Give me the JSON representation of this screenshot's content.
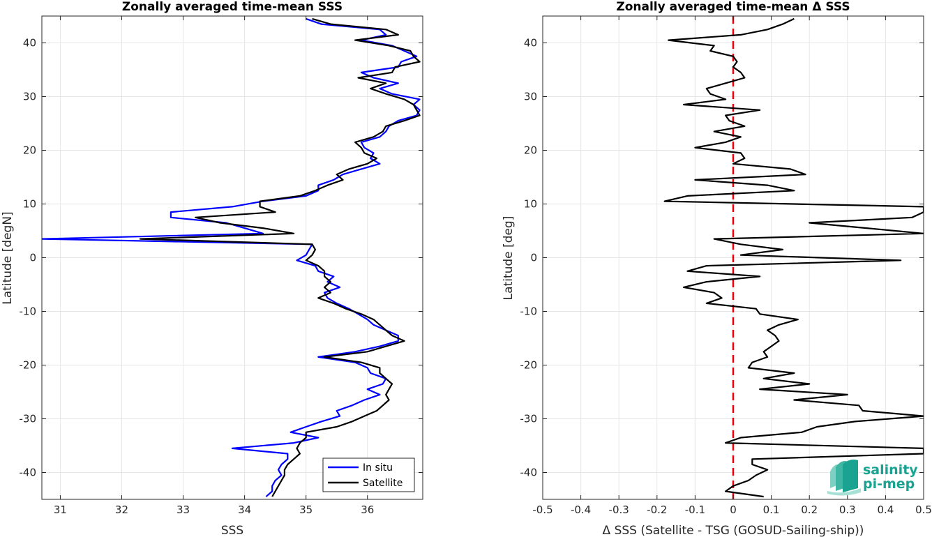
{
  "chart_data": [
    {
      "type": "line",
      "title": "Zonally averaged time-mean SSS",
      "xlabel": "SSS",
      "ylabel": "Latitude [degN]",
      "xlim": [
        30.7,
        36.9
      ],
      "ylim": [
        -45,
        45
      ],
      "xticks": [
        31,
        32,
        33,
        34,
        35,
        36
      ],
      "yticks": [
        -40,
        -30,
        -20,
        -10,
        0,
        10,
        20,
        30,
        40
      ],
      "grid": true,
      "legend": "bottom-right",
      "series": [
        {
          "name": "In situ",
          "color": "#0000ff",
          "lat": [
            44.5,
            43.5,
            42.5,
            41.5,
            40.5,
            39.5,
            38.5,
            37.5,
            36.5,
            35.5,
            34.5,
            33.5,
            32.5,
            31.5,
            30.5,
            29.5,
            28.5,
            27.5,
            26.5,
            25.5,
            24.5,
            23.5,
            22.5,
            21.5,
            20.5,
            19.5,
            18.5,
            17.5,
            16.5,
            15.5,
            14.5,
            13.5,
            12.5,
            11.5,
            10.5,
            9.5,
            8.5,
            7.5,
            6.5,
            5.5,
            4.5,
            3.5,
            2.5,
            1.5,
            0.5,
            -0.5,
            -1.5,
            -2.5,
            -3.5,
            -4.5,
            -5.5,
            -6.5,
            -7.5,
            -8.5,
            -9.5,
            -10.5,
            -11.5,
            -12.5,
            -13.5,
            -14.5,
            -15.5,
            -16.5,
            -17.5,
            -18.5,
            -19.5,
            -20.5,
            -21.5,
            -22.5,
            -23.5,
            -24.5,
            -25.5,
            -26.5,
            -27.5,
            -28.5,
            -29.5,
            -30.5,
            -31.5,
            -32.5,
            -33.5,
            -34.5,
            -35.5,
            -36.5,
            -37.5,
            -38.5,
            -39.5,
            -40.5,
            -41.5,
            -42.5,
            -43.5,
            -44.5
          ],
          "values": [
            35.0,
            35.25,
            36.2,
            36.3,
            35.9,
            36.4,
            36.6,
            36.8,
            36.55,
            36.5,
            35.9,
            36.1,
            36.5,
            36.2,
            36.4,
            36.85,
            36.75,
            36.85,
            36.8,
            36.5,
            36.35,
            36.3,
            36.2,
            35.9,
            35.95,
            36.1,
            36.05,
            36.2,
            35.9,
            35.6,
            35.45,
            35.2,
            35.2,
            35.0,
            34.3,
            33.8,
            32.8,
            32.8,
            33.7,
            34.0,
            34.3,
            30.7,
            35.1,
            35.05,
            35.0,
            34.85,
            35.15,
            35.2,
            35.45,
            35.35,
            35.55,
            35.3,
            35.35,
            35.5,
            35.7,
            35.85,
            36.0,
            36.1,
            36.3,
            36.5,
            36.5,
            36.2,
            35.8,
            35.2,
            35.8,
            36.0,
            36.05,
            36.3,
            36.25,
            36.0,
            36.2,
            35.95,
            35.75,
            35.5,
            35.55,
            35.25,
            35.0,
            34.75,
            35.2,
            34.8,
            33.8,
            34.7,
            34.7,
            34.6,
            34.55,
            34.6,
            34.5,
            34.45,
            34.45,
            34.35
          ]
        },
        {
          "name": "Satellite",
          "color": "#000000",
          "lat": [
            44.5,
            43.5,
            42.5,
            41.5,
            40.5,
            39.5,
            38.5,
            37.5,
            36.5,
            35.5,
            34.5,
            33.5,
            32.5,
            31.5,
            30.5,
            29.5,
            28.5,
            27.5,
            26.5,
            25.5,
            24.5,
            23.5,
            22.5,
            21.5,
            20.5,
            19.5,
            18.5,
            17.5,
            16.5,
            15.5,
            14.5,
            13.5,
            12.5,
            11.5,
            10.5,
            9.5,
            8.5,
            7.5,
            6.5,
            5.5,
            4.5,
            3.5,
            2.5,
            1.5,
            0.5,
            -0.5,
            -1.5,
            -2.5,
            -3.5,
            -4.5,
            -5.5,
            -6.5,
            -7.5,
            -8.5,
            -9.5,
            -10.5,
            -11.5,
            -12.5,
            -13.5,
            -14.5,
            -15.5,
            -16.5,
            -17.5,
            -18.5,
            -19.5,
            -20.5,
            -21.5,
            -22.5,
            -23.5,
            -24.5,
            -25.5,
            -26.5,
            -27.5,
            -28.5,
            -29.5,
            -30.5,
            -31.5,
            -32.5,
            -33.5,
            -34.5,
            -35.5,
            -36.5,
            -37.5,
            -38.5,
            -39.5,
            -40.5,
            -41.5,
            -42.5,
            -43.5,
            -44.5
          ],
          "values": [
            35.1,
            35.4,
            36.3,
            36.5,
            35.8,
            36.35,
            36.7,
            36.75,
            36.85,
            36.45,
            36.4,
            35.85,
            36.3,
            36.05,
            36.3,
            36.6,
            36.75,
            36.8,
            36.85,
            36.6,
            36.3,
            36.25,
            36.1,
            35.8,
            35.9,
            35.95,
            36.15,
            36.0,
            35.7,
            35.5,
            35.6,
            35.35,
            35.15,
            34.9,
            34.25,
            34.25,
            34.5,
            33.2,
            33.6,
            34.3,
            34.8,
            32.3,
            35.1,
            35.15,
            35.1,
            35.0,
            35.2,
            35.3,
            35.3,
            35.4,
            35.3,
            35.4,
            35.2,
            35.45,
            35.65,
            35.9,
            36.1,
            36.2,
            36.3,
            36.4,
            36.6,
            36.3,
            36.0,
            35.3,
            35.9,
            36.2,
            36.2,
            36.3,
            36.4,
            36.35,
            36.3,
            36.35,
            36.25,
            36.15,
            35.95,
            35.75,
            35.5,
            35.0,
            35.0,
            34.9,
            34.85,
            34.9,
            34.8,
            34.7,
            34.65,
            34.65,
            34.6,
            34.55,
            34.5,
            34.45
          ]
        }
      ]
    },
    {
      "type": "line",
      "title": "Zonally averaged time-mean Δ SSS",
      "xlabel": "Δ SSS (Satellite - TSG (GOSUD-Sailing-ship))",
      "ylabel": "Latitude [deg]",
      "xlim": [
        -0.5,
        0.5
      ],
      "ylim": [
        -45,
        45
      ],
      "xticks": [
        -0.5,
        -0.4,
        -0.3,
        -0.2,
        -0.1,
        0,
        0.1,
        0.2,
        0.3,
        0.4,
        0.5
      ],
      "xtick_labels": [
        "-0.5",
        "-0.4",
        "-0.3",
        "-0.2",
        "-0.1",
        "0",
        "0.1",
        "0.2",
        "0.3",
        "0.4",
        "0.5"
      ],
      "yticks": [
        -40,
        -30,
        -20,
        -10,
        0,
        10,
        20,
        30,
        40
      ],
      "grid": true,
      "zero_line_color": "#e8000b",
      "series": [
        {
          "color": "#000000",
          "lat": [
            44.5,
            43.5,
            42.5,
            41.5,
            40.5,
            39.5,
            38.5,
            37.5,
            36.5,
            35.5,
            34.5,
            33.5,
            32.5,
            31.5,
            30.5,
            29.5,
            28.5,
            27.5,
            26.5,
            25.5,
            24.5,
            23.5,
            22.5,
            21.5,
            20.5,
            19.5,
            18.5,
            17.5,
            16.5,
            15.5,
            14.5,
            13.5,
            12.5,
            11.5,
            10.5,
            9.5,
            8.5,
            7.5,
            6.5,
            5.5,
            4.5,
            3.5,
            2.5,
            1.5,
            0.5,
            -0.5,
            -1.5,
            -2.5,
            -3.5,
            -4.5,
            -5.5,
            -6.5,
            -7.5,
            -8.5,
            -9.5,
            -10.5,
            -11.5,
            -12.5,
            -13.5,
            -14.5,
            -15.5,
            -16.5,
            -17.5,
            -18.5,
            -19.5,
            -20.5,
            -21.5,
            -22.5,
            -23.5,
            -24.5,
            -25.5,
            -26.5,
            -27.5,
            -28.5,
            -29.5,
            -30.5,
            -31.5,
            -32.5,
            -33.5,
            -34.5,
            -35.5,
            -36.5,
            -37.5,
            -38.5,
            -39.5,
            -40.5,
            -41.5,
            -42.5,
            -43.5,
            -44.5
          ],
          "values": [
            0.16,
            0.13,
            0.09,
            0.02,
            -0.17,
            -0.05,
            -0.06,
            0.0,
            0.01,
            0.0,
            0.02,
            0.03,
            -0.02,
            -0.07,
            -0.06,
            -0.02,
            -0.13,
            0.07,
            -0.02,
            -0.01,
            0.03,
            -0.05,
            0.02,
            -0.02,
            -0.1,
            0.02,
            0.03,
            0.0,
            0.15,
            0.19,
            -0.1,
            0.09,
            0.16,
            -0.12,
            -0.18,
            0.5,
            0.5,
            0.47,
            0.2,
            0.35,
            0.5,
            -0.05,
            0.02,
            0.13,
            0.02,
            0.44,
            -0.07,
            -0.12,
            0.07,
            -0.07,
            -0.13,
            -0.05,
            -0.03,
            -0.07,
            0.06,
            0.07,
            0.17,
            0.12,
            0.09,
            0.11,
            0.12,
            0.1,
            0.08,
            0.09,
            0.05,
            0.04,
            0.16,
            0.08,
            0.2,
            0.07,
            0.3,
            0.16,
            0.33,
            0.34,
            0.5,
            0.32,
            0.22,
            0.18,
            0.02,
            -0.02,
            0.5,
            0.5,
            0.05,
            0.05,
            0.09,
            0.06,
            0.04,
            0.0,
            -0.02,
            0.08
          ]
        }
      ]
    }
  ],
  "logo": {
    "line1": "salinity",
    "line2": "pi-mep",
    "color": "#1aa391"
  }
}
